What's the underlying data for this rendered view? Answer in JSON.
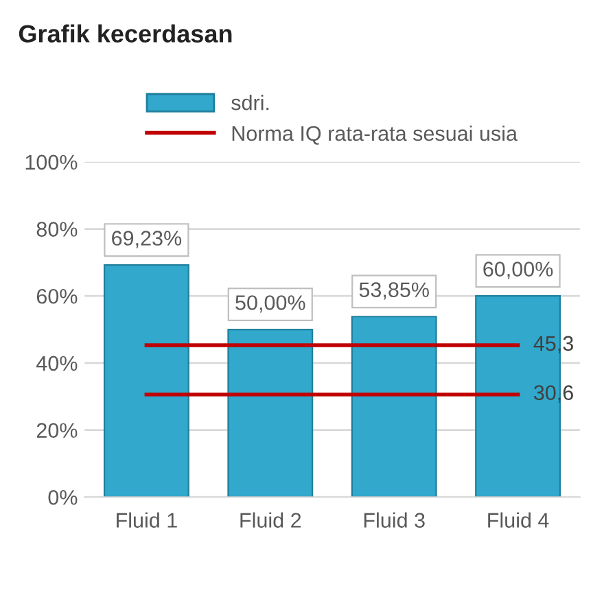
{
  "chart_data": {
    "type": "bar",
    "title": "Grafik kecerdasan",
    "categories": [
      "Fluid 1",
      "Fluid 2",
      "Fluid 3",
      "Fluid 4"
    ],
    "series": [
      {
        "name": "sdri.",
        "color": "#31a8cc",
        "values": [
          69.23,
          50,
          53.85,
          60
        ],
        "value_labels": [
          "69,23%",
          "50,00%",
          "53,85%",
          "60,00%"
        ]
      },
      {
        "type": "line",
        "name": "Norma IQ rata-rata sesuai usia",
        "color": "#c00000",
        "values": [
          45.3,
          45.3,
          45.3,
          45.3
        ],
        "value_labels": [
          null,
          null,
          null,
          "45,3"
        ]
      },
      {
        "type": "line",
        "color": "#c00000",
        "values": [
          30.6,
          30.6,
          30.6,
          30.6
        ],
        "value_labels": [
          null,
          null,
          null,
          "30,6"
        ]
      }
    ],
    "ylim": [
      0,
      100
    ],
    "yticks": [
      {
        "value": 0,
        "label": "0%"
      },
      {
        "value": 20,
        "label": "20%"
      },
      {
        "value": 40,
        "label": "40%"
      },
      {
        "value": 60,
        "label": "60%"
      },
      {
        "value": 80,
        "label": "80%"
      },
      {
        "value": 100,
        "label": "100%"
      }
    ],
    "grid": "y",
    "legend": "top"
  }
}
